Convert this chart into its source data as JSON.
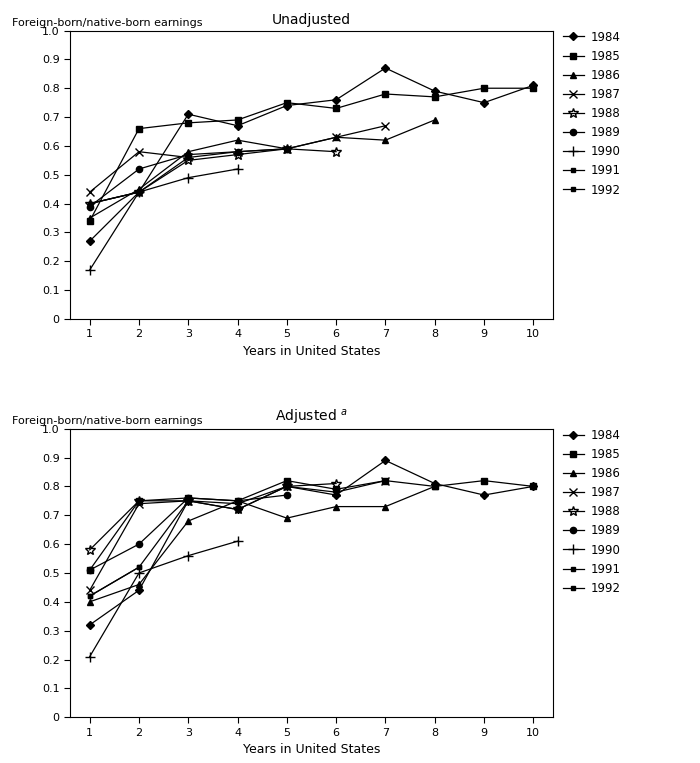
{
  "unadj": {
    "1984": {
      "x": [
        1,
        2,
        3,
        4,
        5,
        6,
        7,
        8,
        9,
        10
      ],
      "y": [
        0.27,
        0.44,
        0.71,
        0.67,
        0.74,
        0.76,
        0.87,
        0.79,
        0.75,
        0.81
      ]
    },
    "1985": {
      "x": [
        1,
        2,
        3,
        4,
        5,
        6,
        7,
        8,
        9,
        10
      ],
      "y": [
        0.34,
        0.66,
        0.68,
        0.69,
        0.75,
        0.73,
        0.78,
        0.77,
        0.8,
        0.8
      ]
    },
    "1986": {
      "x": [
        1,
        2,
        3,
        4,
        5,
        6,
        7,
        8,
        9,
        10
      ],
      "y": [
        0.35,
        0.45,
        0.58,
        0.62,
        0.59,
        0.63,
        0.62,
        0.69,
        null,
        null
      ]
    },
    "1987": {
      "x": [
        1,
        2,
        3,
        4,
        5,
        6,
        7,
        8,
        9,
        10
      ],
      "y": [
        0.44,
        0.58,
        0.56,
        0.58,
        0.59,
        0.63,
        0.67,
        null,
        null,
        null
      ]
    },
    "1988": {
      "x": [
        1,
        2,
        3,
        4,
        5,
        6,
        7,
        8,
        9,
        10
      ],
      "y": [
        0.4,
        0.44,
        0.55,
        0.57,
        0.59,
        0.58,
        null,
        null,
        null,
        null
      ]
    },
    "1989": {
      "x": [
        1,
        2,
        3,
        4,
        5,
        6,
        7,
        8,
        9,
        10
      ],
      "y": [
        0.39,
        0.52,
        0.57,
        0.58,
        0.59,
        null,
        null,
        null,
        null,
        null
      ]
    },
    "1990": {
      "x": [
        1,
        2,
        3,
        4,
        5,
        6,
        7,
        8,
        9,
        10
      ],
      "y": [
        0.17,
        0.44,
        0.49,
        0.52,
        null,
        null,
        null,
        null,
        null,
        null
      ]
    },
    "1991": {
      "x": [
        1,
        2,
        3,
        4,
        5,
        6,
        7,
        8,
        9,
        10
      ],
      "y": [
        0.4,
        0.44,
        0.56,
        null,
        null,
        null,
        null,
        null,
        null,
        null
      ]
    },
    "1992": {
      "x": [
        1,
        2,
        3,
        4,
        5,
        6,
        7,
        8,
        9,
        10
      ],
      "y": [
        0.4,
        0.44,
        null,
        null,
        null,
        null,
        null,
        null,
        null,
        null
      ]
    }
  },
  "adj": {
    "1984": {
      "x": [
        1,
        2,
        3,
        4,
        5,
        6,
        7,
        8,
        9,
        10
      ],
      "y": [
        0.32,
        0.44,
        0.75,
        0.72,
        0.8,
        0.77,
        0.89,
        0.81,
        0.77,
        0.8
      ]
    },
    "1985": {
      "x": [
        1,
        2,
        3,
        4,
        5,
        6,
        7,
        8,
        9,
        10
      ],
      "y": [
        0.51,
        0.75,
        0.76,
        0.75,
        0.82,
        0.79,
        0.82,
        0.8,
        0.82,
        0.8
      ]
    },
    "1986": {
      "x": [
        1,
        2,
        3,
        4,
        5,
        6,
        7,
        8,
        9,
        10
      ],
      "y": [
        0.4,
        0.46,
        0.68,
        0.75,
        0.69,
        0.73,
        0.73,
        0.8,
        null,
        null
      ]
    },
    "1987": {
      "x": [
        1,
        2,
        3,
        4,
        5,
        6,
        7,
        8,
        9,
        10
      ],
      "y": [
        0.44,
        0.74,
        0.75,
        0.74,
        0.8,
        0.78,
        0.82,
        null,
        null,
        null
      ]
    },
    "1988": {
      "x": [
        1,
        2,
        3,
        4,
        5,
        6,
        7,
        8,
        9,
        10
      ],
      "y": [
        0.58,
        0.75,
        0.75,
        0.72,
        0.8,
        0.81,
        null,
        null,
        null,
        null
      ]
    },
    "1989": {
      "x": [
        1,
        2,
        3,
        4,
        5,
        6,
        7,
        8,
        9,
        10
      ],
      "y": [
        0.51,
        0.6,
        0.76,
        0.75,
        0.77,
        null,
        null,
        null,
        null,
        null
      ]
    },
    "1990": {
      "x": [
        1,
        2,
        3,
        4,
        5,
        6,
        7,
        8,
        9,
        10
      ],
      "y": [
        0.21,
        0.5,
        0.56,
        0.61,
        null,
        null,
        null,
        null,
        null,
        null
      ]
    },
    "1991": {
      "x": [
        1,
        2,
        3,
        4,
        5,
        6,
        7,
        8,
        9,
        10
      ],
      "y": [
        0.42,
        0.52,
        0.75,
        null,
        null,
        null,
        null,
        null,
        null,
        null
      ]
    },
    "1992": {
      "x": [
        1,
        2,
        3,
        4,
        5,
        6,
        7,
        8,
        9,
        10
      ],
      "y": [
        0.42,
        0.52,
        null,
        null,
        null,
        null,
        null,
        null,
        null,
        null
      ]
    }
  },
  "title_top": "Unadjusted",
  "title_bottom": "Adjusted $^{a}$",
  "ylabel": "Foreign-born/native-born earnings",
  "xlabel": "Years in United States",
  "ylim": [
    0,
    1.0
  ],
  "xlim": [
    0.6,
    10.4
  ],
  "yticks": [
    0,
    0.1,
    0.2,
    0.3,
    0.4,
    0.5,
    0.6,
    0.7,
    0.8,
    0.9,
    1.0
  ],
  "xticks": [
    1,
    2,
    3,
    4,
    5,
    6,
    7,
    8,
    9,
    10
  ],
  "series_order": [
    "1984",
    "1985",
    "1986",
    "1987",
    "1988",
    "1989",
    "1990",
    "1991",
    "1992"
  ]
}
